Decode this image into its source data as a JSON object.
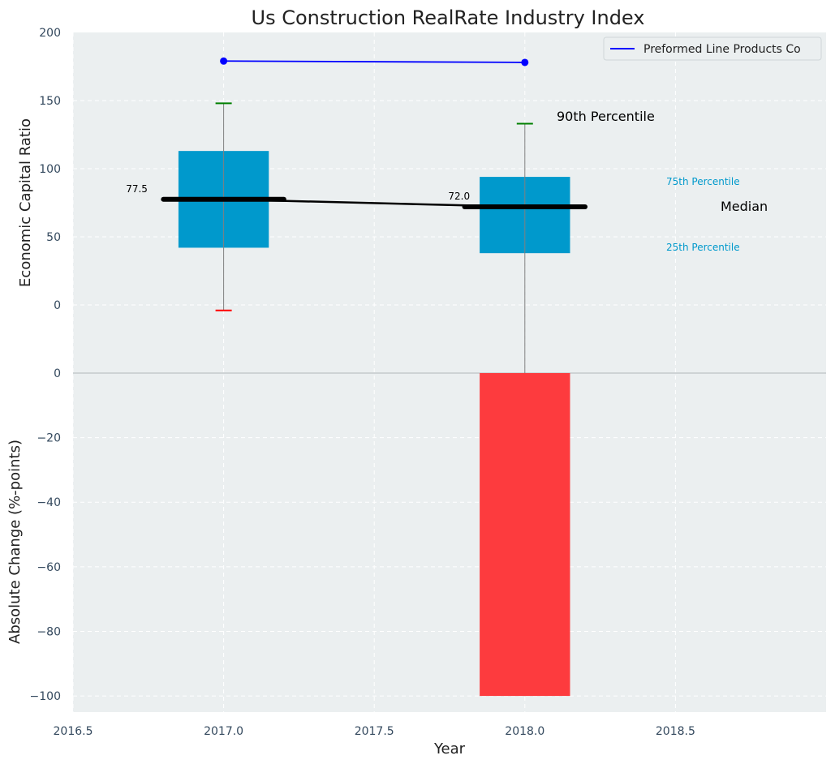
{
  "chart_data": {
    "title": "Us Construction RealRate Industry Index",
    "xlabel": "Year",
    "x_ticks": [
      "2016.5",
      "2017.0",
      "2017.5",
      "2018.0",
      "2018.5"
    ],
    "xlim": [
      2016.5,
      2019.0
    ],
    "top_panel": {
      "type": "box",
      "ylabel": "Economic Capital Ratio",
      "ylim": [
        -50,
        200
      ],
      "y_ticks": [
        "200",
        "150",
        "100",
        "50",
        "0",
        "0"
      ],
      "boxes": [
        {
          "year": 2017,
          "p10": -4,
          "p25": 42,
          "median": 77.5,
          "p75": 113,
          "p90": 148,
          "median_label": "77.5"
        },
        {
          "year": 2018,
          "p10": -50,
          "p25": 38,
          "median": 72.0,
          "p75": 94,
          "p90": 133,
          "median_label": "72.0"
        }
      ],
      "company_series": {
        "name": "Preformed Line Products Co",
        "type": "line",
        "x": [
          2017,
          2018
        ],
        "y": [
          179,
          178
        ]
      },
      "annotations": {
        "p90": "90th Percentile",
        "p75": "75th Percentile",
        "median": "Median",
        "p25": "25th Percentile"
      },
      "legend_position": "top-right",
      "grid": true
    },
    "bottom_panel": {
      "type": "bar",
      "ylabel": "Absolute Change (%-points)",
      "ylim": [
        -105,
        0
      ],
      "y_ticks": [
        "−20",
        "−40",
        "−60",
        "−80",
        "−100"
      ],
      "bars": [
        {
          "year": 2018,
          "value": -100
        }
      ],
      "grid": true
    },
    "colors": {
      "background": "#ebeff0",
      "box": "#0099cc",
      "bar": "#fd3b3e",
      "company_line": "#0000ff",
      "median_line": "#000000",
      "p90_cap": "#008000",
      "p10_cap": "#ff0000"
    }
  }
}
